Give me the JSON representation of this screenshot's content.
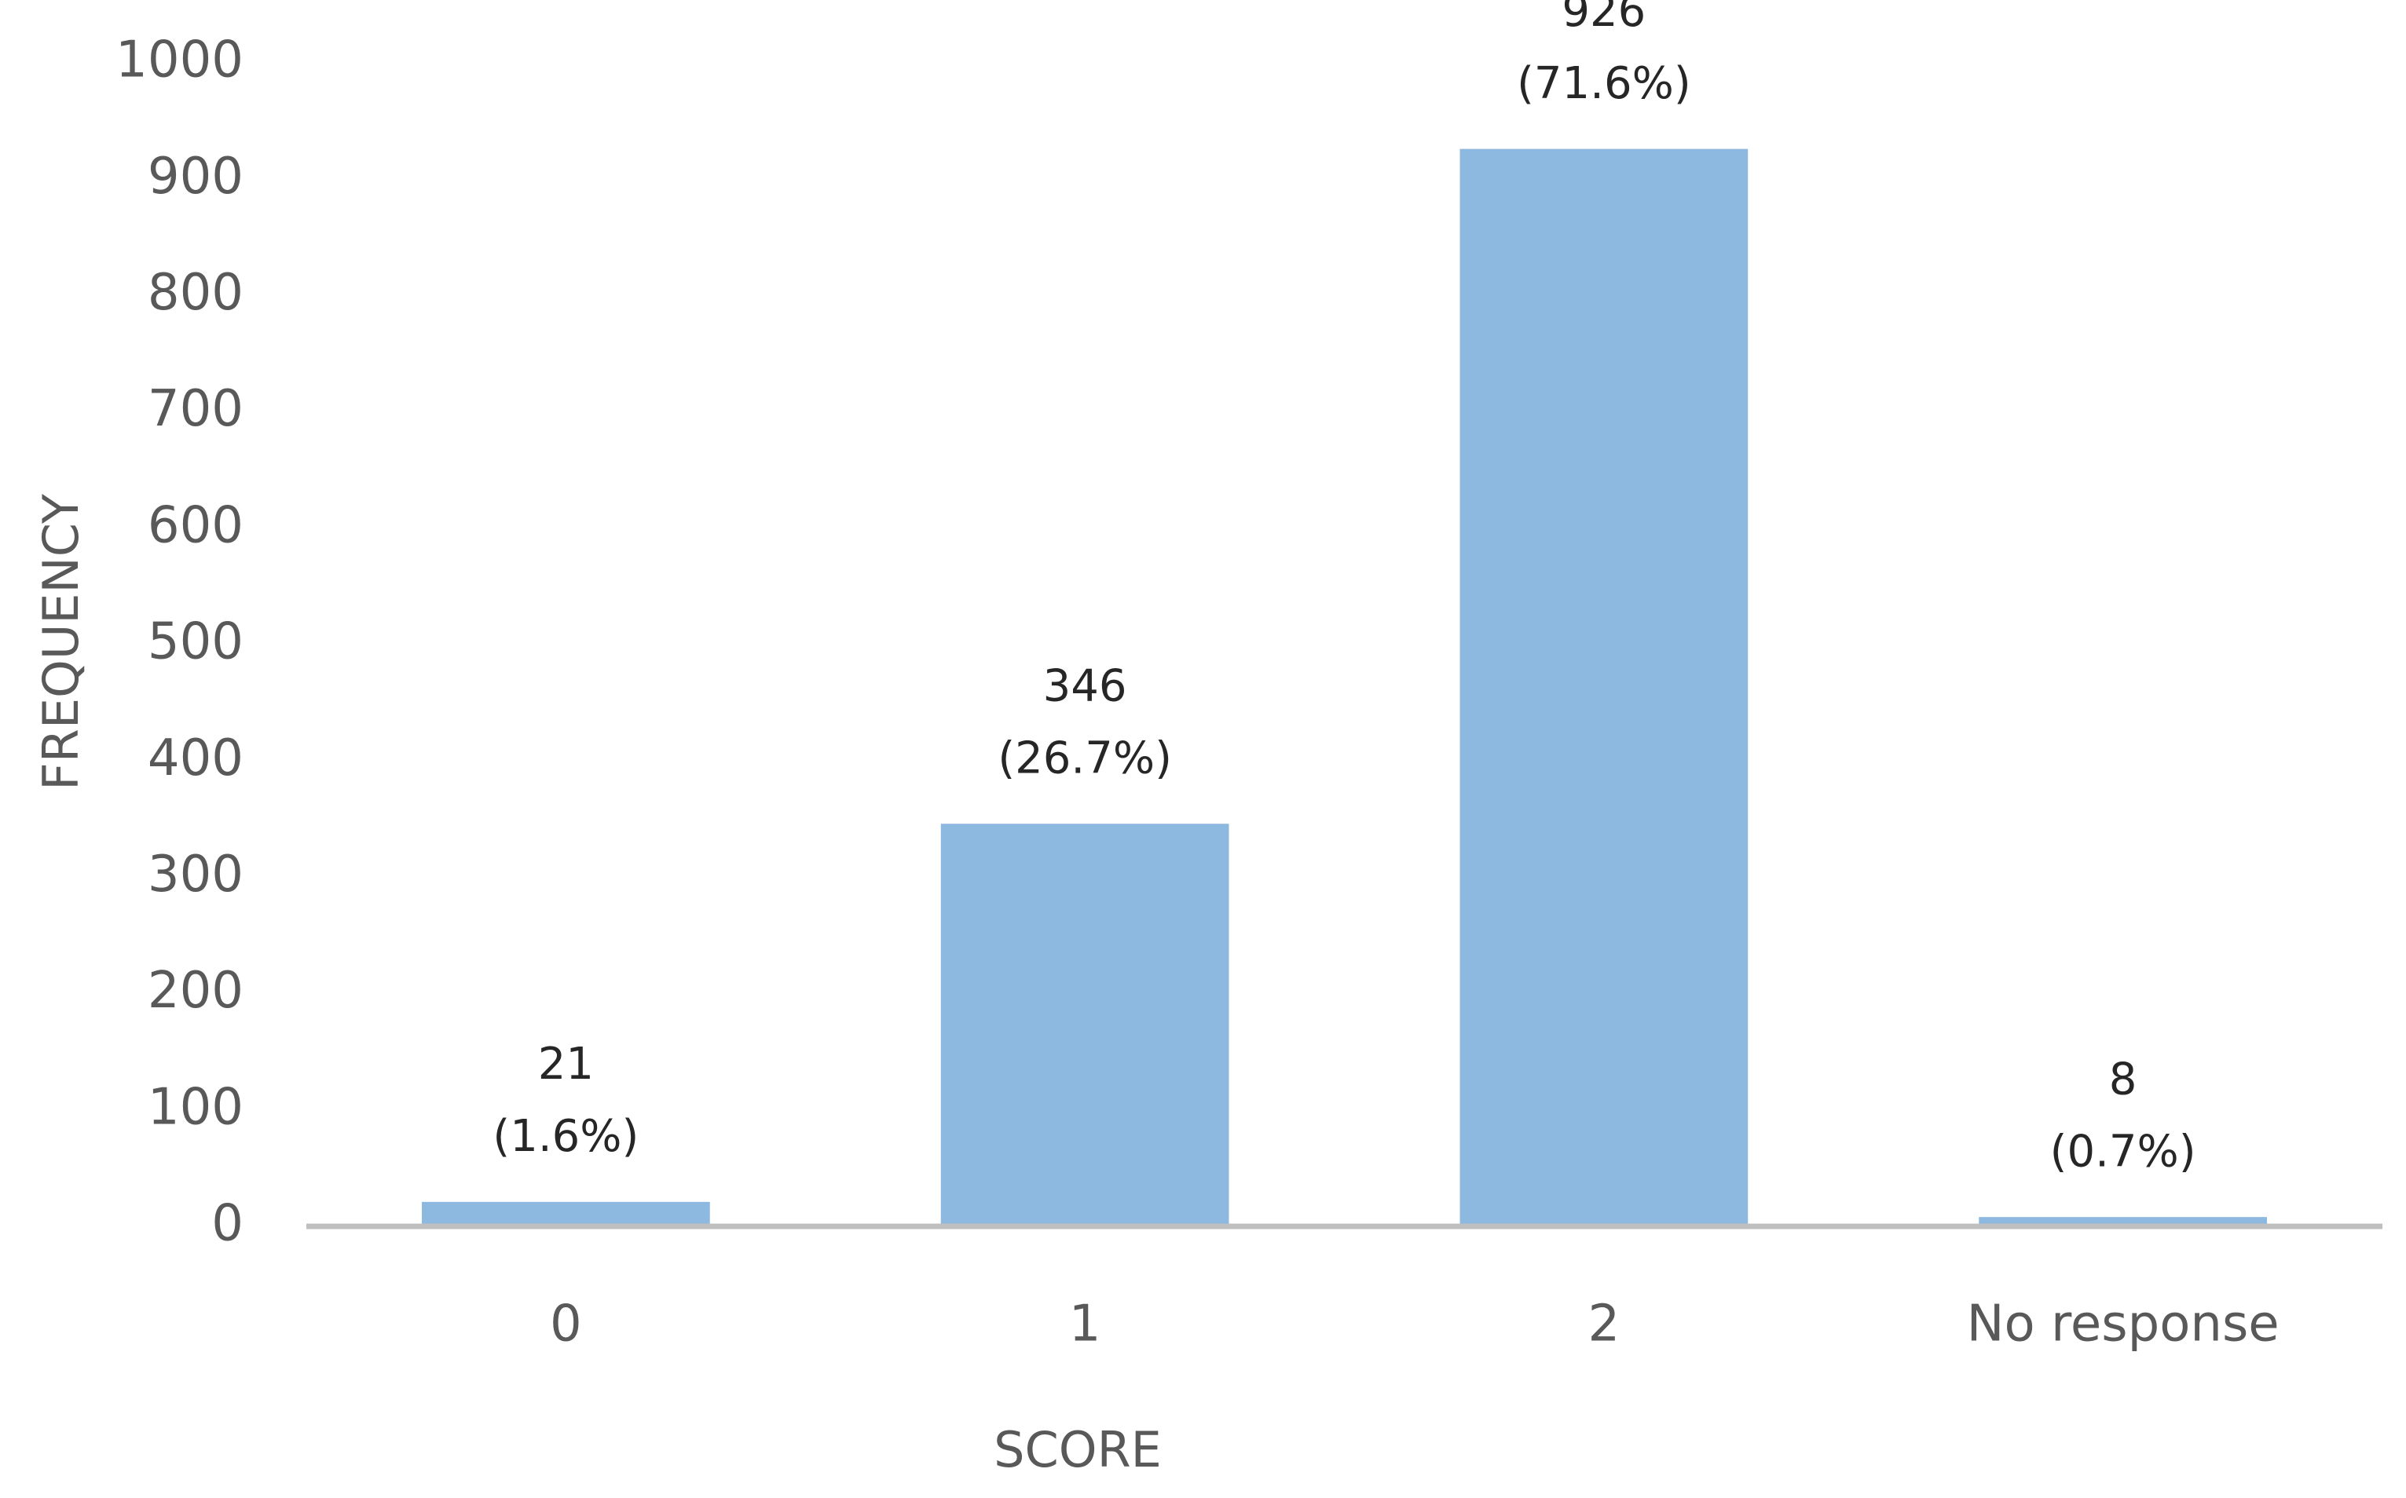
{
  "chart_data": {
    "type": "bar",
    "categories": [
      "0",
      "1",
      "2",
      "No response"
    ],
    "values": [
      21,
      346,
      926,
      8
    ],
    "percent_labels": [
      "(1.6%)",
      "(26.7%)",
      "(71.6%)",
      "(0.7%)"
    ],
    "title": "",
    "xlabel": "SCORE",
    "ylabel": "FREQUENCY",
    "ylim": [
      0,
      1000
    ],
    "yticks": [
      0,
      100,
      200,
      300,
      400,
      500,
      600,
      700,
      800,
      900,
      1000
    ],
    "grid": false,
    "legend": "none",
    "bar_color": "#8db8e0",
    "axis_line_color": "#bfbfbf",
    "text_color": "#595959",
    "label_color": "#262626"
  }
}
